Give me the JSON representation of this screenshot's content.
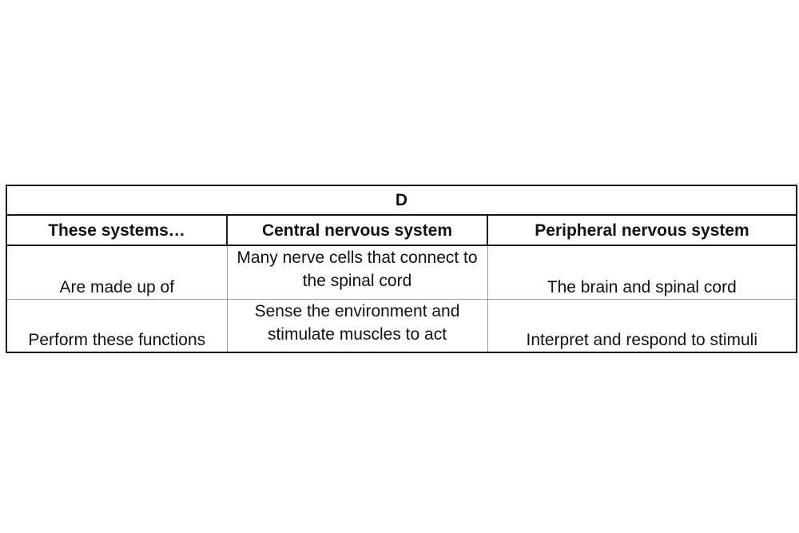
{
  "table": {
    "title": "D",
    "headers": [
      "These systems…",
      "Central nervous system",
      "Peripheral nervous system"
    ],
    "rows": [
      [
        "Are made up of",
        "Many nerve cells that connect to the spinal cord",
        "The brain and spinal cord"
      ],
      [
        "Perform these functions",
        "Sense the environment and stimulate muscles to act",
        "Interpret and respond to stimuli"
      ]
    ]
  }
}
